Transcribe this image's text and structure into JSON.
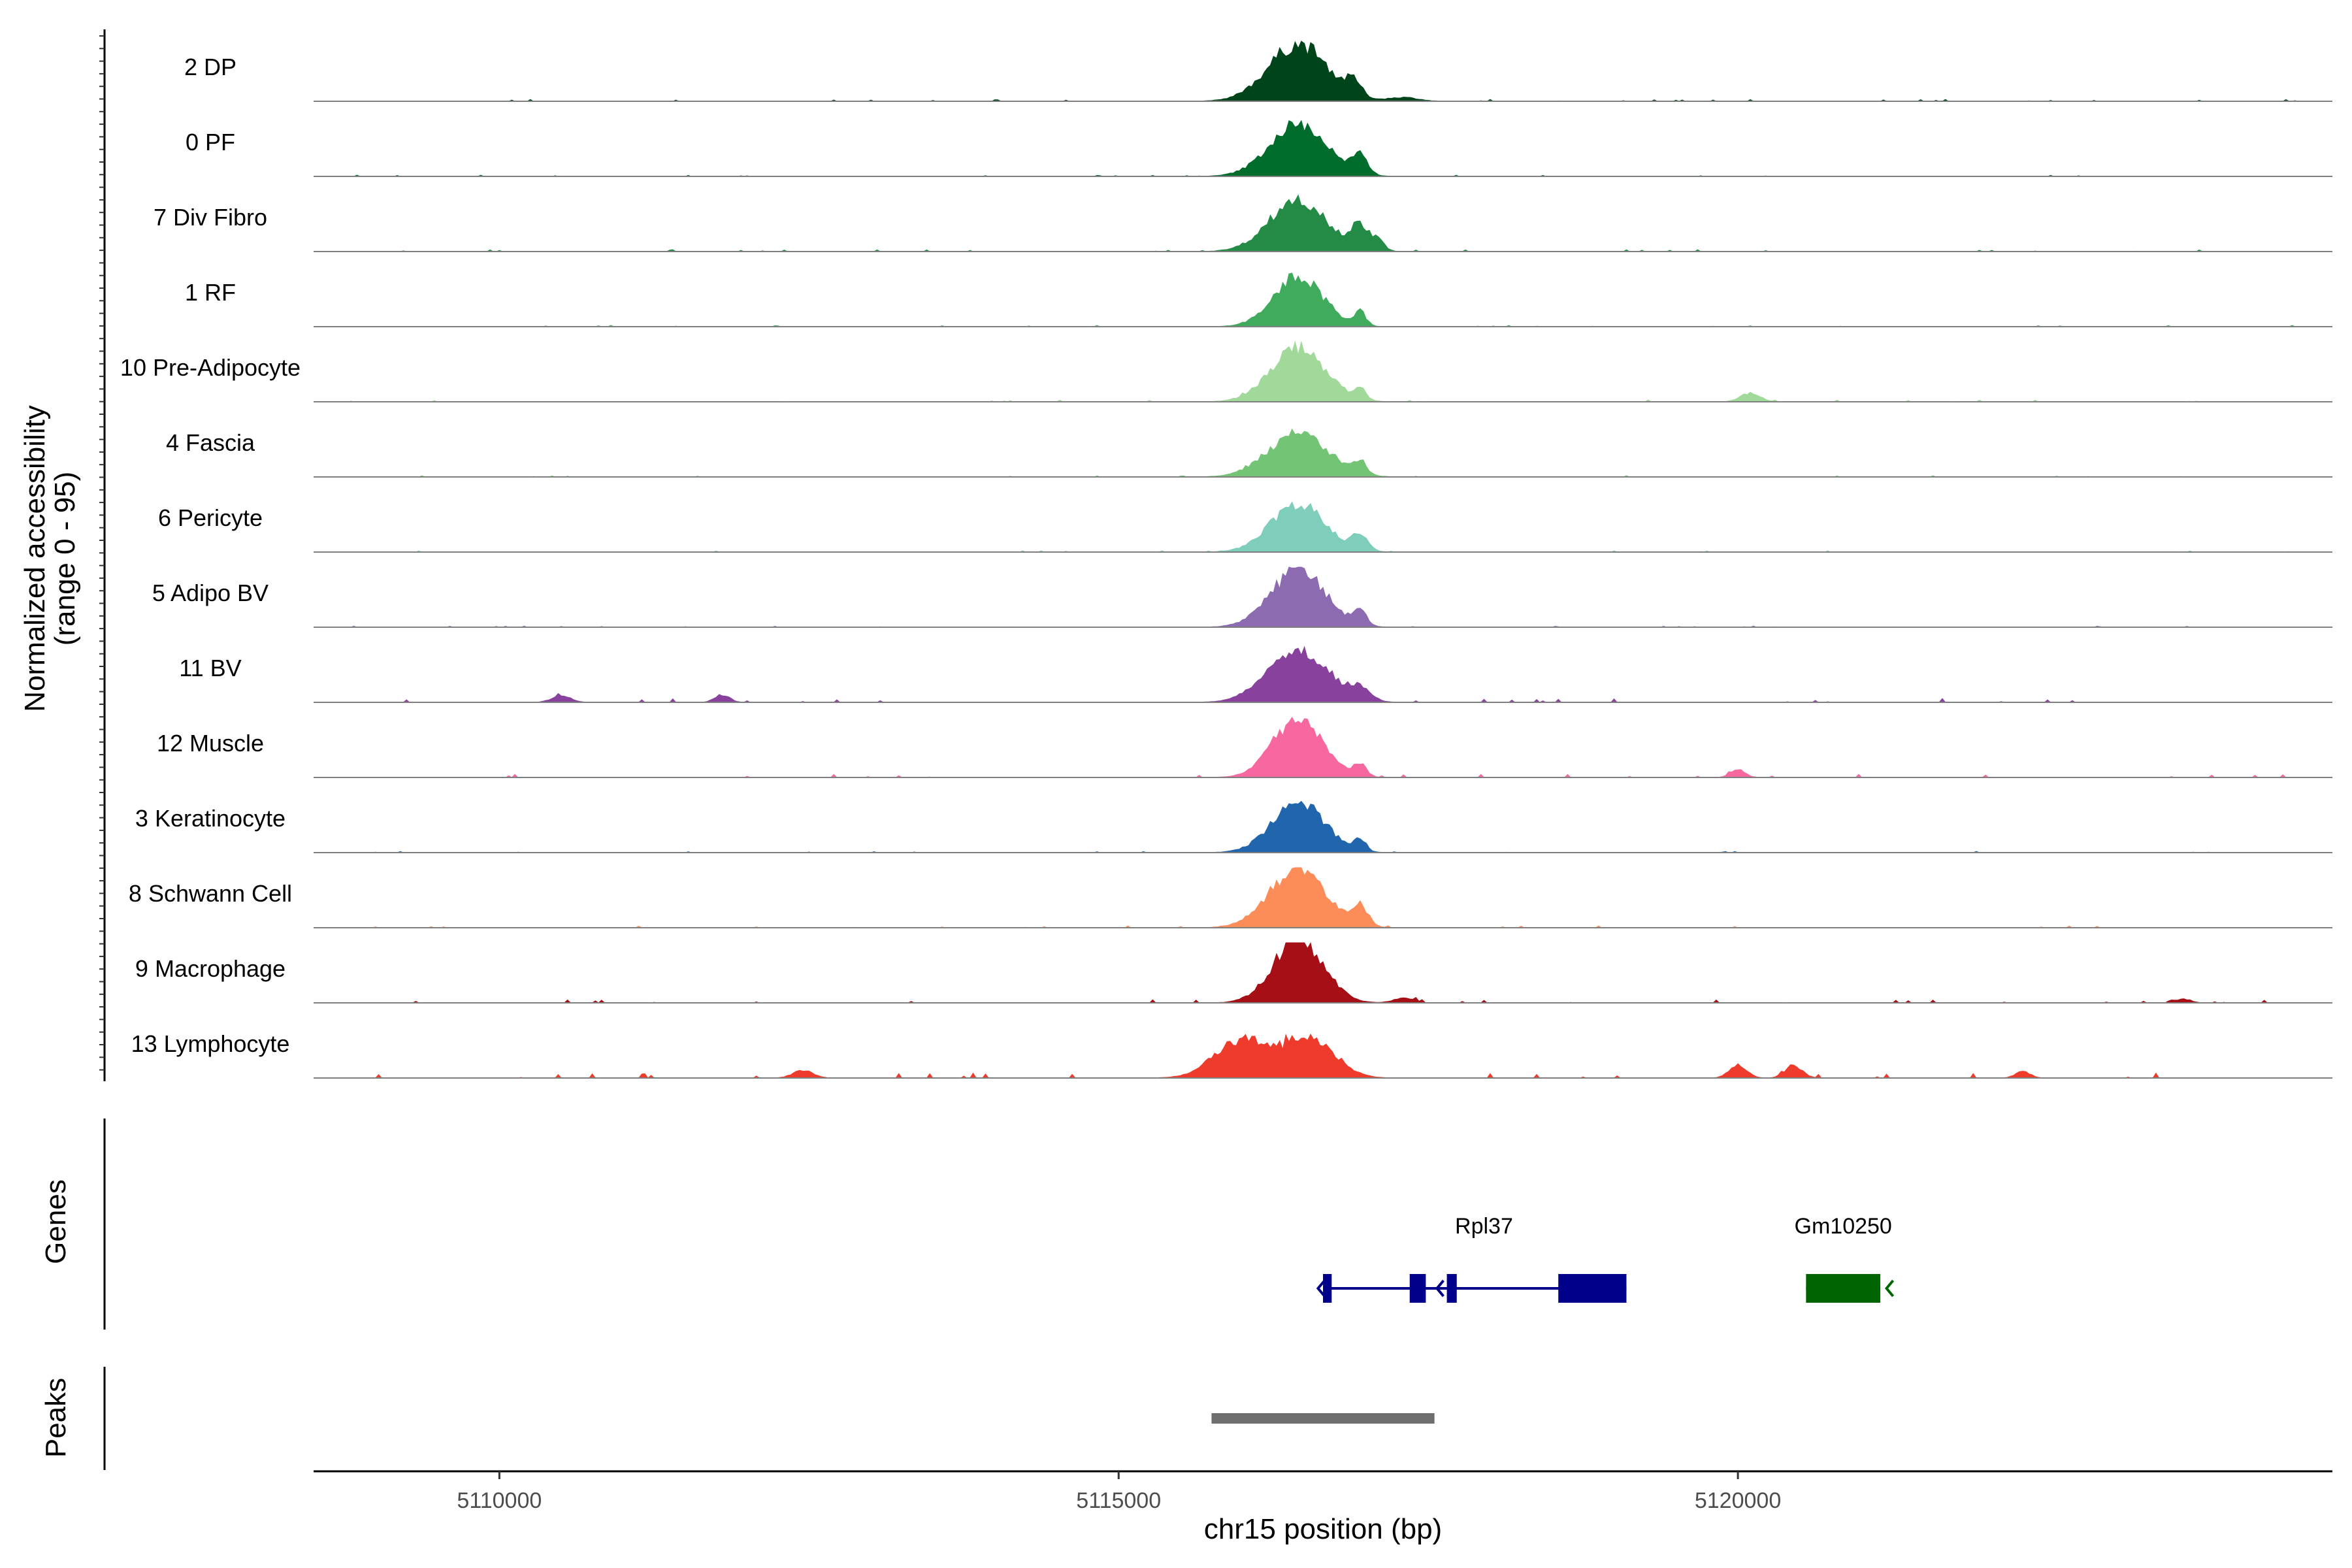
{
  "chart_data": {
    "type": "area",
    "title": "",
    "ylabel_line1": "Normalized accessibility",
    "ylabel_line2": "(range 0 - 95)",
    "xlabel": "chr15 position (bp)",
    "xlim": [
      5108500,
      5124800
    ],
    "ylim": [
      0,
      95
    ],
    "x_ticks": [
      5110000,
      5115000,
      5120000
    ],
    "x_tick_labels": [
      "5110000",
      "5115000",
      "5120000"
    ],
    "tracks": [
      {
        "name": "2 DP",
        "color": "#00441b",
        "noise": 3,
        "peaks": [
          [
            5116450,
            240,
            90
          ],
          [
            5116900,
            60,
            22
          ],
          [
            5117300,
            120,
            6
          ]
        ]
      },
      {
        "name": "0 PF",
        "color": "#006d2c",
        "noise": 2,
        "peaks": [
          [
            5116450,
            230,
            82
          ],
          [
            5116950,
            60,
            28
          ]
        ]
      },
      {
        "name": "7 Div Fibro",
        "color": "#238b45",
        "noise": 3,
        "peaks": [
          [
            5116450,
            230,
            82
          ],
          [
            5116950,
            70,
            38
          ],
          [
            5117100,
            50,
            15
          ]
        ]
      },
      {
        "name": "1 RF",
        "color": "#41ab5d",
        "noise": 2,
        "peaks": [
          [
            5116450,
            200,
            78
          ],
          [
            5116950,
            45,
            22
          ]
        ]
      },
      {
        "name": "10 Pre-Adipocyte",
        "color": "#a1d99b",
        "noise": 3,
        "peaks": [
          [
            5116450,
            220,
            85
          ],
          [
            5116950,
            45,
            18
          ],
          [
            5120100,
            80,
            14
          ]
        ]
      },
      {
        "name": "4 Fascia",
        "color": "#74c476",
        "noise": 2,
        "peaks": [
          [
            5116450,
            240,
            70
          ],
          [
            5116950,
            50,
            20
          ]
        ]
      },
      {
        "name": "6 Pericyte",
        "color": "#7fcdbb",
        "noise": 2,
        "peaks": [
          [
            5116450,
            220,
            75
          ],
          [
            5116950,
            60,
            25
          ]
        ]
      },
      {
        "name": "5 Adipo BV",
        "color": "#8c6bb1",
        "noise": 2,
        "peaks": [
          [
            5116450,
            220,
            90
          ],
          [
            5116950,
            50,
            22
          ]
        ]
      },
      {
        "name": "11 BV",
        "color": "#88419d",
        "noise": 6,
        "peaks": [
          [
            5116450,
            240,
            85
          ],
          [
            5116950,
            80,
            18
          ],
          [
            5110500,
            80,
            10
          ],
          [
            5111800,
            60,
            12
          ]
        ]
      },
      {
        "name": "12 Muscle",
        "color": "#f768a1",
        "noise": 5,
        "peaks": [
          [
            5116450,
            200,
            95
          ],
          [
            5116950,
            50,
            20
          ],
          [
            5120000,
            60,
            12
          ]
        ]
      },
      {
        "name": "3 Keratinocyte",
        "color": "#2166ac",
        "noise": 2,
        "peaks": [
          [
            5116450,
            210,
            80
          ],
          [
            5116950,
            45,
            20
          ]
        ]
      },
      {
        "name": "8 Schwann Cell",
        "color": "#fc8d59",
        "noise": 3,
        "peaks": [
          [
            5116450,
            230,
            92
          ],
          [
            5116950,
            60,
            30
          ]
        ]
      },
      {
        "name": "9 Macrophage",
        "color": "#a50f15",
        "noise": 5,
        "peaks": [
          [
            5116450,
            200,
            100
          ],
          [
            5117300,
            80,
            8
          ],
          [
            5123600,
            60,
            6
          ]
        ]
      },
      {
        "name": "13 Lymphocyte",
        "color": "#ef3b2c",
        "noise": 8,
        "peaks": [
          [
            5116000,
            220,
            60
          ],
          [
            5116550,
            200,
            62
          ],
          [
            5112450,
            80,
            12
          ],
          [
            5120000,
            70,
            20
          ],
          [
            5120450,
            70,
            20
          ],
          [
            5122300,
            60,
            10
          ]
        ]
      }
    ],
    "genes": [
      {
        "name": "Rpl37",
        "strand": "-",
        "color": "#00008b",
        "start": 5116650,
        "end": 5119100,
        "exons": [
          [
            5116650,
            5116720
          ],
          [
            5117350,
            5117480
          ],
          [
            5117650,
            5117730
          ],
          [
            5118550,
            5119100
          ]
        ],
        "label_x": 5117950,
        "arrows": [
          5116610,
          5117570
        ]
      },
      {
        "name": "Gm10250",
        "strand": "-",
        "color": "#006400",
        "start": 5120550,
        "end": 5121150,
        "exons": [
          [
            5120550,
            5121150
          ]
        ],
        "label_x": 5120850,
        "arrows": [
          5121200
        ]
      }
    ],
    "peak_regions": [
      {
        "start": 5115750,
        "end": 5117550,
        "color": "#6e6e6e"
      }
    ],
    "panel_titles": [
      "Genes",
      "Peaks"
    ]
  }
}
